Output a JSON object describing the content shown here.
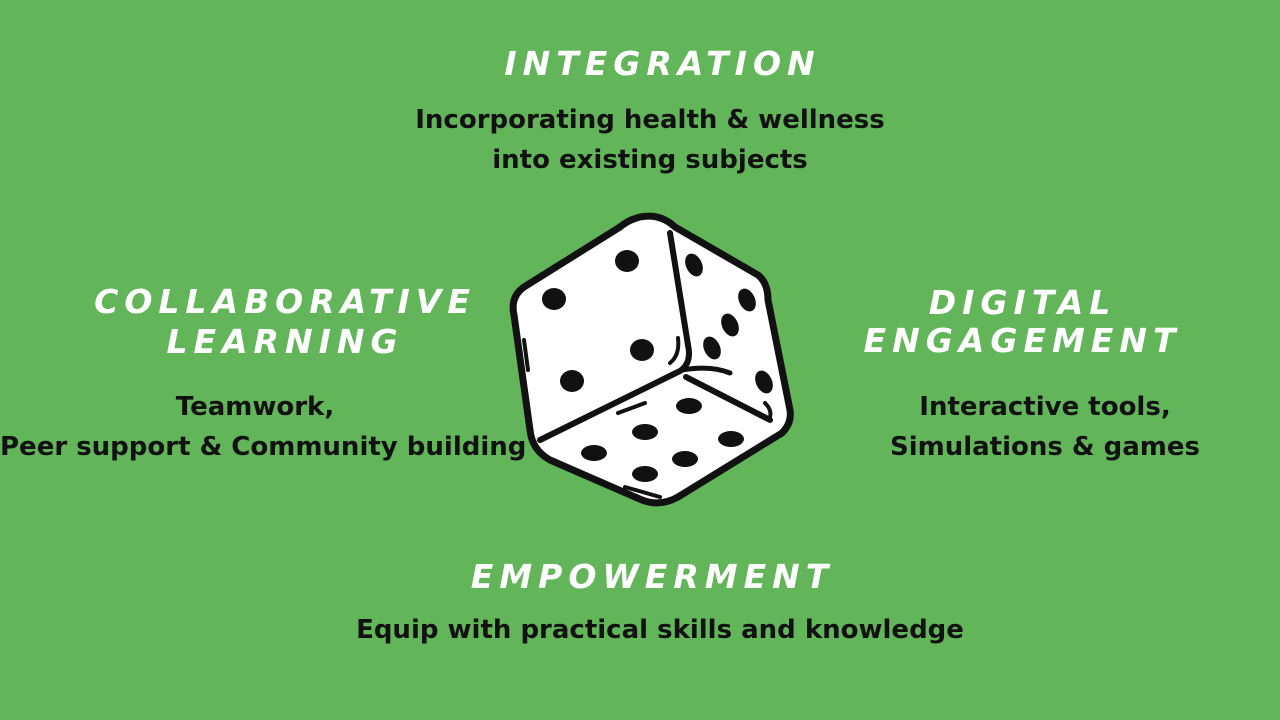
{
  "top": {
    "heading": "INTEGRATION",
    "body_lines": [
      "Incorporating health & wellness",
      "into existing subjects"
    ]
  },
  "left": {
    "heading_lines": [
      "COLLABORATIVE",
      "LEARNING"
    ],
    "body_lines": [
      "Teamwork,",
      "Peer support & Community building"
    ]
  },
  "right": {
    "heading_lines": [
      "DIGITAL",
      "ENGAGEMENT"
    ],
    "body_lines": [
      "Interactive tools,",
      "Simulations & games"
    ]
  },
  "bottom": {
    "heading": "EMPOWERMENT",
    "body_lines": [
      "Equip with practical skills and knowledge"
    ]
  },
  "center": {
    "icon": "dice-icon"
  },
  "colors": {
    "background": "#63b55a",
    "heading": "#ffffff",
    "body": "#111111"
  }
}
